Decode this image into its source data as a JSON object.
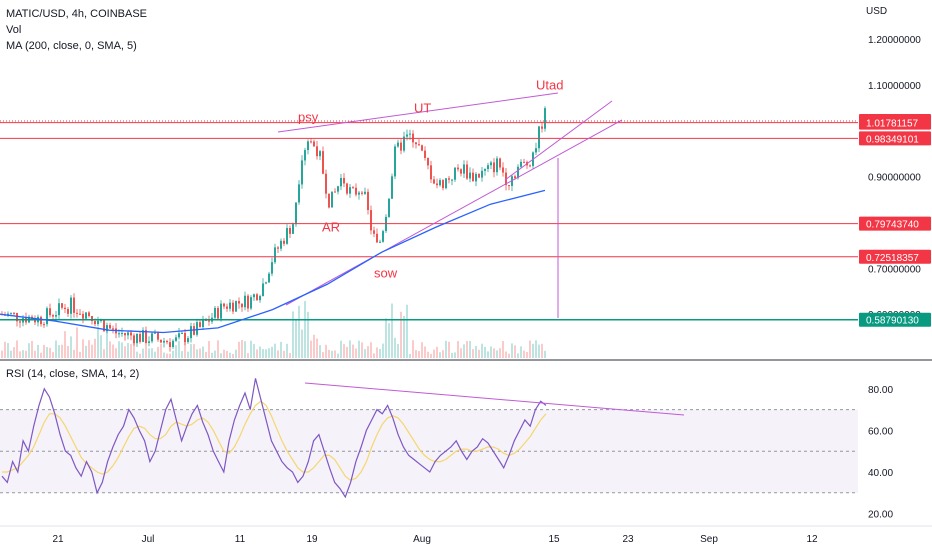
{
  "header": {
    "symbol_line": "MATIC/USD, 4h, COINBASE",
    "vol_label": "Vol",
    "ma_label": "MA (200, close, 0, SMA, 5)",
    "rsi_label": "RSI (14, close, SMA, 14, 2)"
  },
  "colors": {
    "candle_up": "#26a69a",
    "candle_down": "#ef5350",
    "ma_line": "#2962ff",
    "rsi_line": "#7e57c2",
    "rsi_ma": "#f5d76e",
    "trendline": "#c15ad6",
    "hline_red": "#f23645",
    "hline_green": "#089981"
  },
  "chart_data": [
    {
      "type": "candlestick",
      "title": "MATIC/USD, 4h, COINBASE",
      "currency": "USD",
      "x_tick_labels": [
        "21",
        "Jul",
        "11",
        "19",
        "Aug",
        "15",
        "23",
        "Sep",
        "12"
      ],
      "y_tick_labels": [
        "1.20000000",
        "1.10000000",
        "0.90000000",
        "0.70000000",
        "0.60000000"
      ],
      "ylim": [
        0.5,
        1.22
      ],
      "price_levels": [
        {
          "value": 1.0215,
          "label": "1.02150000",
          "style": "red-dotted"
        },
        {
          "value": 1.01781157,
          "label": "1.01781157",
          "style": "red"
        },
        {
          "value": 0.98349101,
          "label": "0.98349101",
          "style": "red"
        },
        {
          "value": 0.7974374,
          "label": "0.79743740",
          "style": "red"
        },
        {
          "value": 0.72518357,
          "label": "0.72518357",
          "style": "red"
        },
        {
          "value": 0.5879013,
          "label": "0.58790130",
          "style": "green"
        }
      ],
      "annotations": [
        {
          "text": "psy",
          "price": 1.02
        },
        {
          "text": "UT",
          "price": 1.04
        },
        {
          "text": "Utad",
          "price": 1.09
        },
        {
          "text": "AR",
          "price": 0.78
        },
        {
          "text": "sow",
          "price": 0.68
        }
      ],
      "series": [
        {
          "name": "MA (200, close, 0, SMA, 5)",
          "type": "line",
          "points": [
            [
              0,
              0.6
            ],
            [
              0.1,
              0.585
            ],
            [
              0.2,
              0.565
            ],
            [
              0.3,
              0.56
            ],
            [
              0.4,
              0.57
            ],
            [
              0.5,
              0.61
            ],
            [
              0.6,
              0.665
            ],
            [
              0.7,
              0.735
            ],
            [
              0.8,
              0.79
            ],
            [
              0.9,
              0.84
            ],
            [
              1.0,
              0.87
            ]
          ]
        }
      ]
    },
    {
      "type": "line",
      "title": "RSI (14, close, SMA, 14, 2)",
      "y_tick_labels": [
        "80.00",
        "60.00",
        "40.00",
        "20.00"
      ],
      "ylim": [
        15,
        90
      ],
      "band": [
        30,
        70
      ],
      "midline": 50,
      "series": [
        {
          "name": "RSI",
          "values": [
            38,
            35,
            45,
            40,
            55,
            50,
            62,
            72,
            80,
            76,
            68,
            58,
            50,
            48,
            42,
            38,
            45,
            40,
            30,
            35,
            45,
            52,
            58,
            62,
            70,
            66,
            60,
            55,
            45,
            50,
            60,
            70,
            75,
            65,
            55,
            62,
            68,
            72,
            64,
            58,
            50,
            45,
            40,
            55,
            65,
            72,
            78,
            70,
            85,
            75,
            65,
            55,
            50,
            45,
            42,
            40,
            35,
            38,
            45,
            55,
            58,
            50,
            42,
            35,
            32,
            28,
            35,
            45,
            52,
            60,
            65,
            70,
            68,
            72,
            66,
            58,
            52,
            48,
            46,
            44,
            42,
            40,
            45,
            48,
            50,
            52,
            55,
            50,
            46,
            50,
            52,
            56,
            54,
            50,
            46,
            42,
            48,
            55,
            60,
            65,
            62,
            70,
            74,
            72
          ]
        },
        {
          "name": "RSI MA",
          "values": [
            40,
            40,
            41,
            42,
            45,
            48,
            52,
            58,
            64,
            68,
            68,
            66,
            62,
            57,
            52,
            47,
            44,
            42,
            40,
            39,
            40,
            43,
            47,
            52,
            57,
            61,
            62,
            61,
            58,
            56,
            56,
            58,
            62,
            64,
            63,
            62,
            63,
            65,
            66,
            64,
            60,
            55,
            50,
            49,
            52,
            57,
            63,
            68,
            72,
            74,
            72,
            67,
            61,
            55,
            50,
            46,
            42,
            40,
            40,
            42,
            45,
            48,
            48,
            46,
            42,
            38,
            36,
            37,
            40,
            45,
            52,
            58,
            63,
            66,
            67,
            66,
            63,
            59,
            55,
            51,
            48,
            46,
            45,
            45,
            46,
            48,
            50,
            51,
            51,
            50,
            50,
            51,
            52,
            52,
            51,
            49,
            48,
            49,
            51,
            54,
            57,
            61,
            65,
            68
          ]
        }
      ]
    }
  ]
}
